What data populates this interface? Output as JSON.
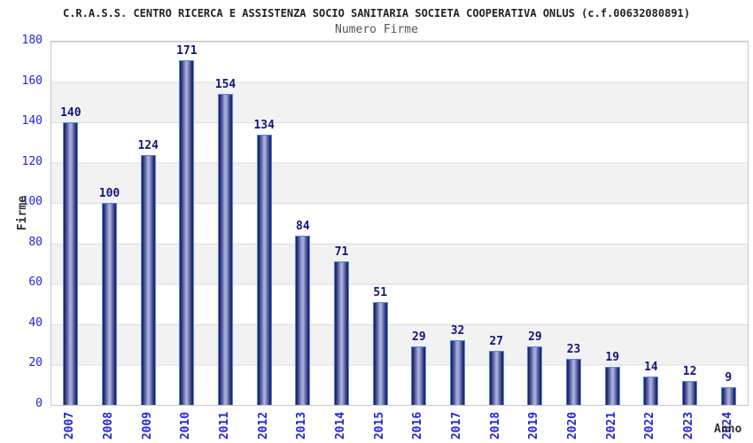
{
  "chart_data": {
    "type": "bar",
    "title": "C.R.A.S.S. CENTRO RICERCA E ASSISTENZA SOCIO SANITARIA SOCIETA COOPERATIVA ONLUS (c.f.00632080891)",
    "subtitle": "Numero Firme",
    "xlabel": "Anno",
    "ylabel": "Firme",
    "categories": [
      "2007",
      "2008",
      "2009",
      "2010",
      "2011",
      "2012",
      "2013",
      "2014",
      "2015",
      "2016",
      "2017",
      "2018",
      "2019",
      "2020",
      "2021",
      "2022",
      "2023",
      "2024"
    ],
    "values": [
      140,
      100,
      124,
      171,
      154,
      134,
      84,
      71,
      51,
      29,
      32,
      27,
      29,
      23,
      19,
      14,
      12,
      9
    ],
    "ylim": [
      0,
      180
    ],
    "ytick_step": 20,
    "yticks": [
      0,
      20,
      40,
      60,
      80,
      100,
      120,
      140,
      160,
      180
    ],
    "grid": "horizontal gridlines with alternating background bands",
    "legend": "none",
    "bar_labels_shown": true,
    "x_labels_rotation": "vertical",
    "colors": {
      "bar_edge_dark": "#1c2060",
      "bar_center_light": "#aab4de",
      "bar_outline": "#4e8ae8",
      "axis_tick_label": "#2323dd",
      "bar_value_label": "#14147d",
      "axis_title": "#333333",
      "band_fill": "#f2f2f2",
      "grid_line": "#dcdcdc",
      "title": "#222222",
      "subtitle": "#555555"
    }
  }
}
